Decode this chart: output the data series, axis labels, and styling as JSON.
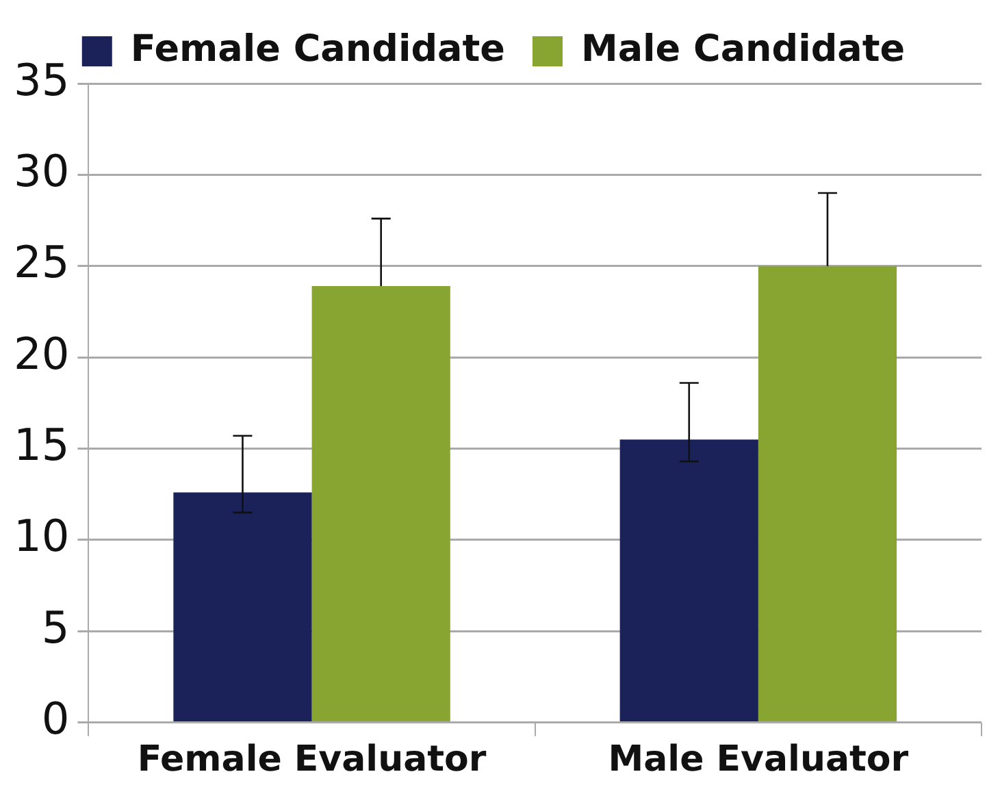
{
  "chart_data": {
    "type": "bar",
    "categories": [
      "Female Evaluator",
      "Male Evaluator"
    ],
    "series": [
      {
        "name": "Female Candidate",
        "color": "#1b2259",
        "values": [
          12.6,
          15.5
        ],
        "errors": [
          [
            11.5,
            15.7
          ],
          [
            14.3,
            18.6
          ]
        ]
      },
      {
        "name": "Male Candidate",
        "color": "#88a532",
        "values": [
          23.9,
          25.0
        ],
        "errors": [
          [
            23.9,
            27.6
          ],
          [
            25.0,
            29.0
          ]
        ]
      }
    ],
    "ylim": [
      0,
      35
    ],
    "yticks": [
      0,
      5,
      10,
      15,
      20,
      25,
      30,
      35
    ],
    "grid": "y",
    "legend": "top"
  }
}
